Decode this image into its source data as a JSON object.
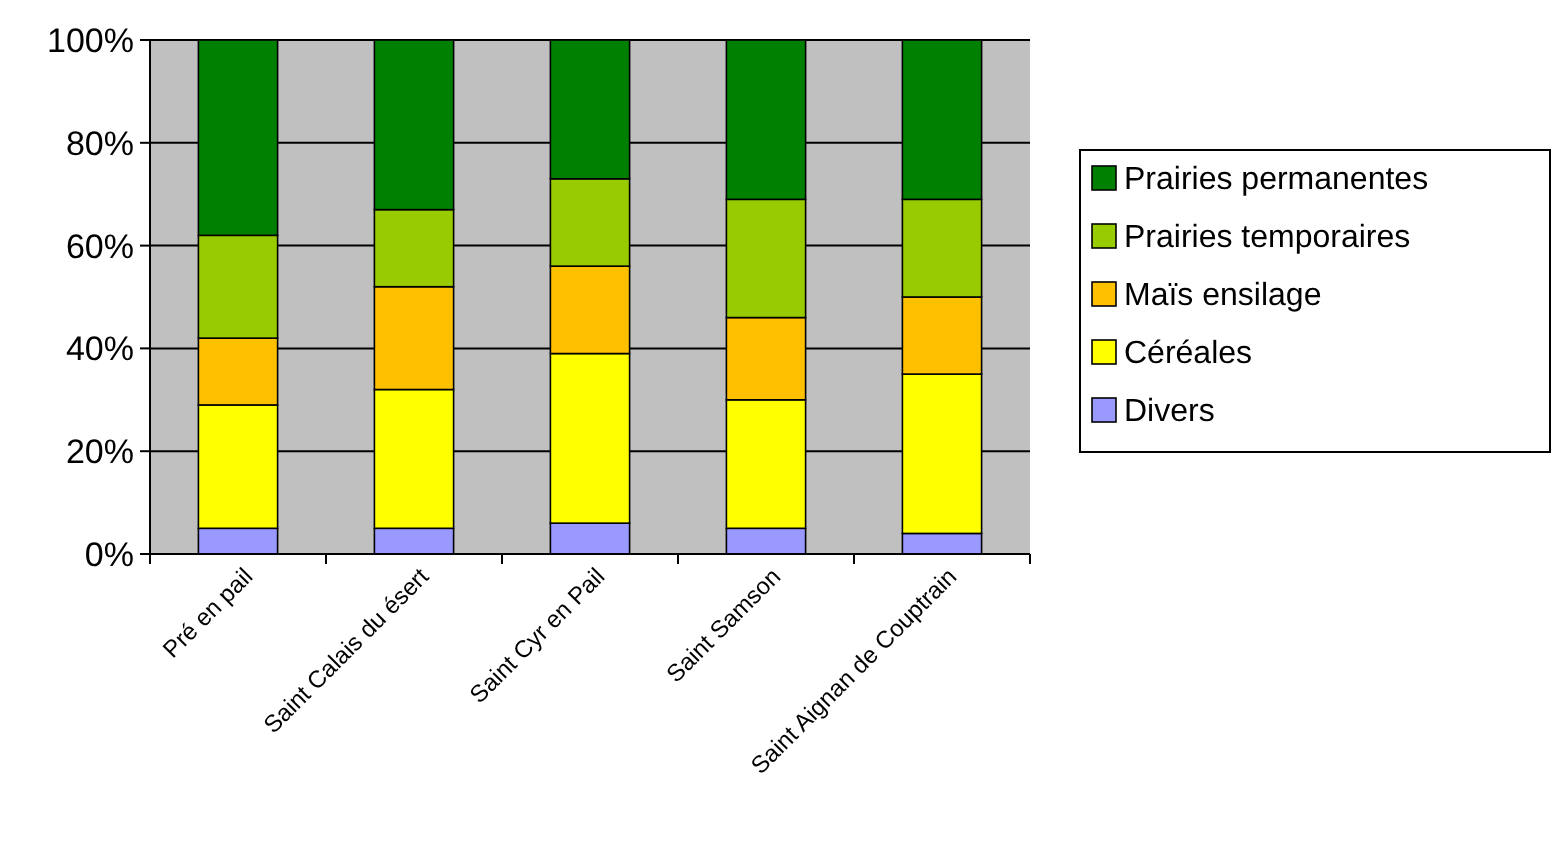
{
  "chart_data": {
    "type": "bar",
    "stacked": true,
    "categories": [
      "Pré en pail",
      "Saint Calais du ésert",
      "Saint Cyr en Pail",
      "Saint Samson",
      "Saint Aignan de Couptrain"
    ],
    "series": [
      {
        "name": "Divers",
        "color": "#9999ff",
        "values": [
          5,
          5,
          6,
          5,
          4
        ]
      },
      {
        "name": "Céréales",
        "color": "#ffff00",
        "values": [
          24,
          27,
          33,
          25,
          31
        ]
      },
      {
        "name": "Maïs ensilage",
        "color": "#ffc000",
        "values": [
          13,
          20,
          17,
          16,
          15
        ]
      },
      {
        "name": "Prairies temporaires",
        "color": "#99cc00",
        "values": [
          20,
          15,
          17,
          23,
          19
        ]
      },
      {
        "name": "Prairies permanentes",
        "color": "#008000",
        "values": [
          38,
          33,
          27,
          31,
          31
        ]
      }
    ],
    "ylim": [
      0,
      100
    ],
    "yticks": [
      {
        "value": 0,
        "label": "0%"
      },
      {
        "value": 20,
        "label": "20%"
      },
      {
        "value": 40,
        "label": "40%"
      },
      {
        "value": 60,
        "label": "60%"
      },
      {
        "value": 80,
        "label": "80%"
      },
      {
        "value": 100,
        "label": "100%"
      }
    ],
    "grid": "y",
    "legend": "right"
  }
}
